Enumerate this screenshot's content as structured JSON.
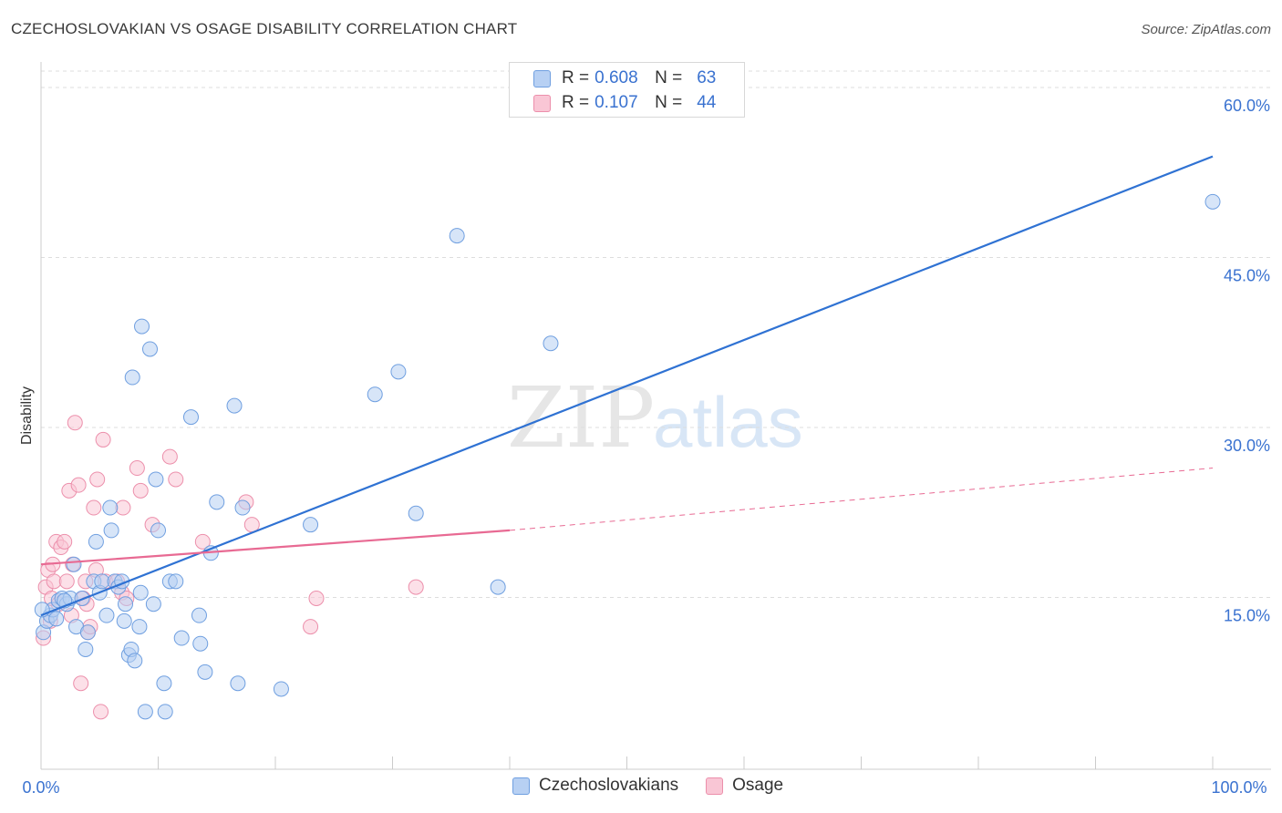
{
  "title": "CZECHOSLOVAKIAN VS OSAGE DISABILITY CORRELATION CHART",
  "source": "Source: ZipAtlas.com",
  "watermark": {
    "zip": "ZIP",
    "atlas": "atlas"
  },
  "legend_top": [
    {
      "r_label": "R =",
      "r_value": "0.608",
      "n_label": "N =",
      "n_value": "63"
    },
    {
      "r_label": "R =",
      "r_value": "0.107",
      "n_label": "N =",
      "n_value": "44"
    }
  ],
  "legend_bottom": [
    "Czechoslovakians",
    "Osage"
  ],
  "colors": {
    "blue_fill": "#b7d0f3",
    "blue_stroke": "#6f9fe0",
    "blue_line": "#2f72d3",
    "pink_fill": "#f9c6d5",
    "pink_stroke": "#ec8fab",
    "pink_line": "#e86a93",
    "axis_text": "#3a72d0",
    "grid": "#dddddd"
  },
  "chart_data": {
    "type": "scatter",
    "title": "CZECHOSLOVAKIAN VS OSAGE DISABILITY CORRELATION CHART",
    "xlabel": "",
    "ylabel": "Disability",
    "xlim": [
      0,
      100
    ],
    "ylim": [
      0,
      65
    ],
    "x_tick_labels": [
      "0.0%",
      "100.0%"
    ],
    "y_ticks": [
      15,
      30,
      45,
      60
    ],
    "y_tick_labels": [
      "15.0%",
      "30.0%",
      "45.0%",
      "60.0%"
    ],
    "grid": "horizontal dashed",
    "legend_position": "top-center",
    "series": [
      {
        "name": "Czechoslovakians",
        "color": "#6f9fe0",
        "points": [
          [
            0.2,
            12.0
          ],
          [
            0.5,
            13.0
          ],
          [
            0.8,
            13.5
          ],
          [
            1.0,
            14.0
          ],
          [
            1.3,
            13.2
          ],
          [
            1.5,
            14.8
          ],
          [
            1.8,
            15.0
          ],
          [
            2.2,
            14.5
          ],
          [
            2.5,
            15.0
          ],
          [
            2.8,
            18.0
          ],
          [
            3.0,
            12.5
          ],
          [
            3.5,
            15.0
          ],
          [
            3.8,
            10.5
          ],
          [
            4.0,
            12.0
          ],
          [
            4.5,
            16.5
          ],
          [
            4.7,
            20.0
          ],
          [
            5.0,
            15.5
          ],
          [
            5.2,
            16.5
          ],
          [
            5.6,
            13.5
          ],
          [
            5.9,
            23.0
          ],
          [
            6.0,
            21.0
          ],
          [
            6.3,
            16.5
          ],
          [
            6.6,
            16.0
          ],
          [
            6.9,
            16.5
          ],
          [
            7.1,
            13.0
          ],
          [
            7.2,
            14.5
          ],
          [
            7.5,
            10.0
          ],
          [
            7.7,
            10.5
          ],
          [
            7.8,
            34.5
          ],
          [
            8.0,
            9.5
          ],
          [
            8.4,
            12.5
          ],
          [
            8.5,
            15.5
          ],
          [
            8.6,
            39.0
          ],
          [
            8.9,
            5.0
          ],
          [
            9.3,
            37.0
          ],
          [
            9.6,
            14.5
          ],
          [
            9.8,
            25.5
          ],
          [
            10.0,
            21.0
          ],
          [
            10.5,
            7.5
          ],
          [
            10.6,
            5.0
          ],
          [
            11.0,
            16.5
          ],
          [
            11.5,
            16.5
          ],
          [
            12.0,
            11.5
          ],
          [
            12.8,
            31.0
          ],
          [
            13.5,
            13.5
          ],
          [
            13.6,
            11.0
          ],
          [
            14.0,
            8.5
          ],
          [
            14.5,
            19.0
          ],
          [
            15.0,
            23.5
          ],
          [
            16.5,
            32.0
          ],
          [
            16.8,
            7.5
          ],
          [
            17.2,
            23.0
          ],
          [
            20.5,
            7.0
          ],
          [
            23.0,
            21.5
          ],
          [
            28.5,
            33.0
          ],
          [
            30.5,
            35.0
          ],
          [
            32.0,
            22.5
          ],
          [
            35.5,
            47.0
          ],
          [
            39.0,
            16.0
          ],
          [
            43.5,
            37.5
          ],
          [
            100.0,
            50.0
          ],
          [
            0.1,
            14.0
          ],
          [
            2.0,
            14.8
          ]
        ]
      },
      {
        "name": "Osage",
        "color": "#ec8fab",
        "points": [
          [
            0.2,
            11.5
          ],
          [
            0.4,
            16.0
          ],
          [
            0.6,
            17.5
          ],
          [
            0.9,
            15.0
          ],
          [
            1.1,
            16.5
          ],
          [
            1.3,
            20.0
          ],
          [
            1.5,
            14.5
          ],
          [
            1.7,
            19.5
          ],
          [
            2.0,
            20.0
          ],
          [
            2.2,
            16.5
          ],
          [
            2.4,
            24.5
          ],
          [
            2.7,
            18.0
          ],
          [
            2.9,
            30.5
          ],
          [
            3.2,
            25.0
          ],
          [
            3.4,
            7.5
          ],
          [
            3.6,
            15.0
          ],
          [
            3.8,
            16.5
          ],
          [
            4.0,
            12.0
          ],
          [
            4.2,
            12.5
          ],
          [
            4.5,
            23.0
          ],
          [
            4.7,
            17.5
          ],
          [
            4.8,
            25.5
          ],
          [
            5.1,
            5.0
          ],
          [
            5.3,
            29.0
          ],
          [
            5.5,
            16.5
          ],
          [
            6.5,
            16.5
          ],
          [
            6.9,
            15.5
          ],
          [
            7.0,
            23.0
          ],
          [
            7.3,
            15.0
          ],
          [
            8.2,
            26.5
          ],
          [
            8.5,
            24.5
          ],
          [
            9.5,
            21.5
          ],
          [
            11.0,
            27.5
          ],
          [
            11.5,
            25.5
          ],
          [
            13.8,
            20.0
          ],
          [
            17.5,
            23.5
          ],
          [
            18.0,
            21.5
          ],
          [
            23.0,
            12.5
          ],
          [
            23.5,
            15.0
          ],
          [
            32.0,
            16.0
          ],
          [
            1.0,
            18.0
          ],
          [
            2.6,
            13.5
          ],
          [
            0.8,
            13.0
          ],
          [
            3.9,
            14.5
          ]
        ]
      }
    ],
    "trend_lines": [
      {
        "series": "Czechoslovakians",
        "from": [
          0,
          13.5
        ],
        "to": [
          100,
          54.0
        ],
        "style": "solid"
      },
      {
        "series": "Osage",
        "from": [
          0,
          18.0
        ],
        "to": [
          40,
          21.0
        ],
        "style": "solid"
      },
      {
        "series": "Osage",
        "from": [
          40,
          21.0
        ],
        "to": [
          100,
          26.5
        ],
        "style": "dashed"
      }
    ]
  }
}
